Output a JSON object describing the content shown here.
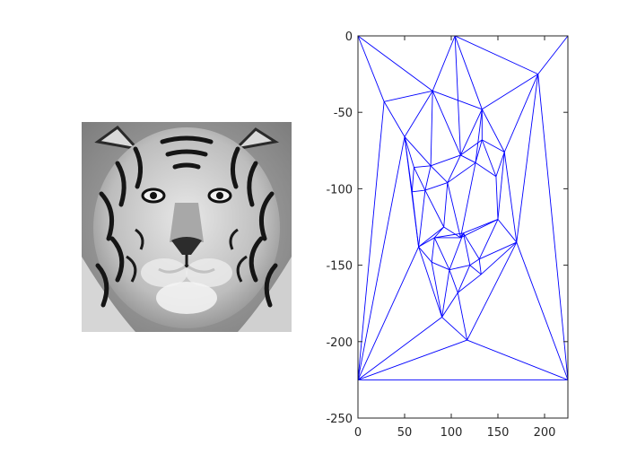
{
  "figure": {
    "photo": {
      "subject": "tiger-face",
      "tone": "grayscale"
    }
  },
  "chart_data": {
    "type": "scatter",
    "subtype": "triangulation-mesh",
    "title": "",
    "xlabel": "",
    "ylabel": "",
    "xlim": [
      0,
      225
    ],
    "ylim": [
      -250,
      0
    ],
    "x_ticks": [
      0,
      50,
      100,
      150,
      200
    ],
    "y_ticks": [
      0,
      -50,
      -100,
      -150,
      -200,
      -250
    ],
    "x_tick_labels": [
      "0",
      "50",
      "100",
      "150",
      "200"
    ],
    "y_tick_labels": [
      "0",
      "-50",
      "-100",
      "-150",
      "-200",
      "-250"
    ],
    "grid": false,
    "line_color": "#0000ff",
    "vertices": [
      [
        0,
        0
      ],
      [
        225,
        0
      ],
      [
        0,
        -225
      ],
      [
        225,
        -225
      ],
      [
        104,
        0
      ],
      [
        193,
        -25
      ],
      [
        28,
        -43
      ],
      [
        80,
        -36
      ],
      [
        133,
        -48
      ],
      [
        50,
        -66
      ],
      [
        110,
        -78
      ],
      [
        133,
        -68
      ],
      [
        157,
        -76
      ],
      [
        60,
        -86
      ],
      [
        78,
        -85
      ],
      [
        96,
        -96
      ],
      [
        126,
        -83
      ],
      [
        148,
        -92
      ],
      [
        58,
        -102
      ],
      [
        72,
        -101
      ],
      [
        92,
        -125
      ],
      [
        110,
        -132
      ],
      [
        150,
        -120
      ],
      [
        65,
        -138
      ],
      [
        82,
        -132
      ],
      [
        113,
        -129
      ],
      [
        98,
        -153
      ],
      [
        120,
        -150
      ],
      [
        132,
        -156
      ],
      [
        79,
        -148
      ],
      [
        130,
        -146
      ],
      [
        170,
        -135
      ],
      [
        107,
        -168
      ],
      [
        90,
        -184
      ],
      [
        117,
        -199
      ]
    ],
    "edges": [
      [
        0,
        1
      ],
      [
        0,
        2
      ],
      [
        1,
        3
      ],
      [
        2,
        3
      ],
      [
        0,
        4
      ],
      [
        4,
        1
      ],
      [
        4,
        5
      ],
      [
        1,
        5
      ],
      [
        5,
        3
      ],
      [
        5,
        8
      ],
      [
        5,
        12
      ],
      [
        5,
        31
      ],
      [
        0,
        7
      ],
      [
        0,
        6
      ],
      [
        6,
        7
      ],
      [
        6,
        2
      ],
      [
        6,
        9
      ],
      [
        7,
        4
      ],
      [
        7,
        8
      ],
      [
        7,
        9
      ],
      [
        7,
        10
      ],
      [
        7,
        14
      ],
      [
        4,
        8
      ],
      [
        4,
        10
      ],
      [
        8,
        10
      ],
      [
        8,
        11
      ],
      [
        8,
        12
      ],
      [
        8,
        16
      ],
      [
        9,
        13
      ],
      [
        9,
        14
      ],
      [
        9,
        18
      ],
      [
        9,
        2
      ],
      [
        9,
        23
      ],
      [
        10,
        14
      ],
      [
        10,
        15
      ],
      [
        10,
        16
      ],
      [
        10,
        11
      ],
      [
        11,
        16
      ],
      [
        11,
        12
      ],
      [
        11,
        17
      ],
      [
        12,
        17
      ],
      [
        12,
        22
      ],
      [
        12,
        31
      ],
      [
        13,
        14
      ],
      [
        13,
        18
      ],
      [
        13,
        19
      ],
      [
        14,
        15
      ],
      [
        14,
        19
      ],
      [
        15,
        16
      ],
      [
        15,
        19
      ],
      [
        15,
        20
      ],
      [
        15,
        21
      ],
      [
        16,
        17
      ],
      [
        16,
        21
      ],
      [
        17,
        22
      ],
      [
        18,
        19
      ],
      [
        18,
        23
      ],
      [
        19,
        23
      ],
      [
        19,
        20
      ],
      [
        20,
        21
      ],
      [
        20,
        24
      ],
      [
        20,
        23
      ],
      [
        21,
        22
      ],
      [
        21,
        25
      ],
      [
        21,
        24
      ],
      [
        22,
        25
      ],
      [
        22,
        30
      ],
      [
        22,
        31
      ],
      [
        23,
        24
      ],
      [
        23,
        29
      ],
      [
        23,
        2
      ],
      [
        23,
        33
      ],
      [
        24,
        29
      ],
      [
        24,
        25
      ],
      [
        24,
        26
      ],
      [
        25,
        30
      ],
      [
        25,
        27
      ],
      [
        25,
        26
      ],
      [
        26,
        29
      ],
      [
        26,
        27
      ],
      [
        26,
        32
      ],
      [
        26,
        33
      ],
      [
        27,
        28
      ],
      [
        27,
        30
      ],
      [
        27,
        32
      ],
      [
        28,
        30
      ],
      [
        28,
        31
      ],
      [
        28,
        32
      ],
      [
        29,
        33
      ],
      [
        30,
        31
      ],
      [
        31,
        34
      ],
      [
        31,
        3
      ],
      [
        32,
        33
      ],
      [
        32,
        34
      ],
      [
        33,
        34
      ],
      [
        33,
        2
      ],
      [
        34,
        2
      ],
      [
        34,
        3
      ]
    ]
  }
}
